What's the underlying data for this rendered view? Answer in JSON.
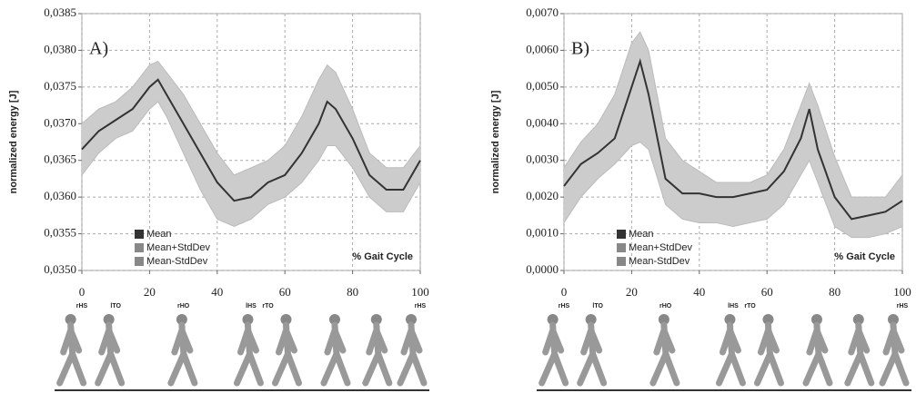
{
  "chart_data": [
    {
      "type": "line",
      "panel_label": "A)",
      "ylabel": "normalized energy [J]",
      "xlabel": "% Gait Cycle",
      "x": [
        0,
        5,
        10,
        15,
        20,
        22.5,
        25,
        30,
        35,
        40,
        45,
        50,
        55,
        60,
        65,
        70,
        72.5,
        75,
        80,
        85,
        90,
        95,
        100
      ],
      "xlim": [
        0,
        100
      ],
      "xticks": [
        0,
        20,
        40,
        60,
        80,
        100
      ],
      "ylim": [
        0.035,
        0.0385
      ],
      "yticks": [
        {
          "value": 0.035,
          "label": "0,0350"
        },
        {
          "value": 0.0355,
          "label": "0,0355"
        },
        {
          "value": 0.036,
          "label": "0,0360"
        },
        {
          "value": 0.0365,
          "label": "0,0365"
        },
        {
          "value": 0.037,
          "label": "0,0370"
        },
        {
          "value": 0.0375,
          "label": "0,0375"
        },
        {
          "value": 0.038,
          "label": "0,0380"
        },
        {
          "value": 0.0385,
          "label": "0,0385"
        }
      ],
      "grid": true,
      "band_color": "#cccccc",
      "series": [
        {
          "name": "Mean",
          "color": "#333333",
          "values": [
            0.03665,
            0.0369,
            0.03705,
            0.0372,
            0.0375,
            0.0376,
            0.0374,
            0.037,
            0.0366,
            0.0362,
            0.03595,
            0.036,
            0.0362,
            0.0363,
            0.0366,
            0.037,
            0.0373,
            0.0372,
            0.0368,
            0.0363,
            0.0361,
            0.0361,
            0.0365
          ]
        },
        {
          "name": "Mean+StdDev",
          "color": "#888888",
          "values": [
            0.037,
            0.0372,
            0.0373,
            0.0375,
            0.0378,
            0.03785,
            0.0377,
            0.0374,
            0.037,
            0.0366,
            0.0363,
            0.0364,
            0.0365,
            0.0367,
            0.0371,
            0.0376,
            0.0378,
            0.0377,
            0.0372,
            0.0366,
            0.0364,
            0.0364,
            0.0367
          ]
        },
        {
          "name": "Mean-StdDev",
          "color": "#888888",
          "values": [
            0.0363,
            0.0366,
            0.0368,
            0.0369,
            0.0372,
            0.0373,
            0.0371,
            0.0366,
            0.0361,
            0.0357,
            0.0356,
            0.0357,
            0.0359,
            0.036,
            0.0362,
            0.0365,
            0.0367,
            0.0367,
            0.0364,
            0.036,
            0.0358,
            0.0358,
            0.0362
          ]
        }
      ],
      "phases": [
        {
          "label": "rHS",
          "x": 0
        },
        {
          "label": "lTO",
          "x": 10
        },
        {
          "label": "rHO",
          "x": 30
        },
        {
          "label": "lHS",
          "x": 50
        },
        {
          "label": "rTO",
          "x": 55
        },
        {
          "label": "rHS",
          "x": 100
        }
      ]
    },
    {
      "type": "line",
      "panel_label": "B)",
      "ylabel": "normalized energy [J]",
      "xlabel": "% Gait Cycle",
      "x": [
        0,
        5,
        10,
        15,
        20,
        22.5,
        25,
        30,
        35,
        40,
        45,
        50,
        55,
        60,
        65,
        70,
        72.5,
        75,
        80,
        85,
        90,
        95,
        100
      ],
      "xlim": [
        0,
        100
      ],
      "xticks": [
        0,
        20,
        40,
        60,
        80,
        100
      ],
      "ylim": [
        0,
        0.007
      ],
      "yticks": [
        {
          "value": 0,
          "label": "0,0000"
        },
        {
          "value": 0.001,
          "label": "0,0010"
        },
        {
          "value": 0.002,
          "label": "0,0020"
        },
        {
          "value": 0.003,
          "label": "0,0030"
        },
        {
          "value": 0.004,
          "label": "0,0040"
        },
        {
          "value": 0.005,
          "label": "0,0050"
        },
        {
          "value": 0.006,
          "label": "0,0060"
        },
        {
          "value": 0.007,
          "label": "0,0070"
        }
      ],
      "grid": true,
      "band_color": "#cccccc",
      "series": [
        {
          "name": "Mean",
          "color": "#333333",
          "values": [
            0.0023,
            0.0029,
            0.0032,
            0.0036,
            0.005,
            0.0057,
            0.0048,
            0.0025,
            0.0021,
            0.0021,
            0.002,
            0.002,
            0.0021,
            0.0022,
            0.0027,
            0.0036,
            0.0044,
            0.0033,
            0.002,
            0.0014,
            0.0015,
            0.0016,
            0.0019
          ]
        },
        {
          "name": "Mean+StdDev",
          "color": "#888888",
          "values": [
            0.0028,
            0.0035,
            0.004,
            0.0048,
            0.0062,
            0.0065,
            0.006,
            0.0036,
            0.003,
            0.0027,
            0.0024,
            0.0024,
            0.0024,
            0.0026,
            0.0033,
            0.0045,
            0.0051,
            0.0045,
            0.0031,
            0.002,
            0.002,
            0.002,
            0.0026
          ]
        },
        {
          "name": "Mean-StdDev",
          "color": "#888888",
          "values": [
            0.0013,
            0.002,
            0.0025,
            0.0029,
            0.0034,
            0.0035,
            0.0033,
            0.0018,
            0.0014,
            0.0013,
            0.0013,
            0.0012,
            0.0013,
            0.0014,
            0.0018,
            0.0026,
            0.003,
            0.0024,
            0.0012,
            0.0009,
            0.0009,
            0.001,
            0.0012
          ]
        }
      ],
      "phases": [
        {
          "label": "rHS",
          "x": 0
        },
        {
          "label": "lTO",
          "x": 10
        },
        {
          "label": "rHO",
          "x": 30
        },
        {
          "label": "lHS",
          "x": 50
        },
        {
          "label": "rTO",
          "x": 55
        },
        {
          "label": "rHS",
          "x": 100
        }
      ]
    }
  ]
}
